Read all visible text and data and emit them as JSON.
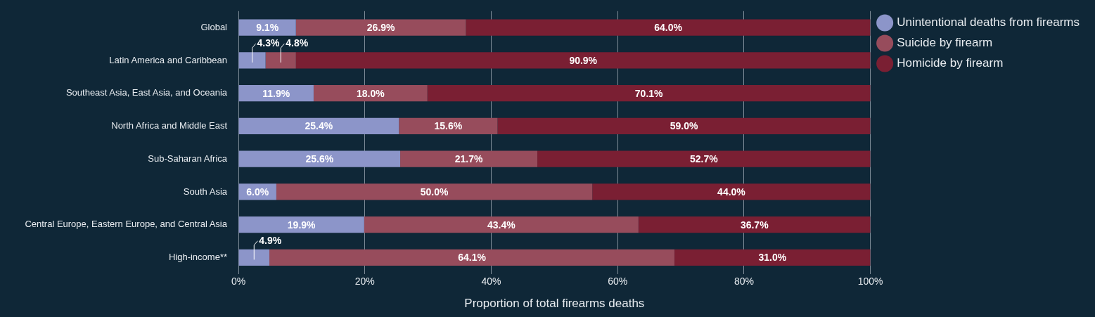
{
  "chart_data": {
    "type": "bar",
    "orientation": "horizontal",
    "stacked": true,
    "categories": [
      "Global",
      "Latin America and Caribbean",
      "Southeast Asia, East Asia, and Oceania",
      "North Africa and Middle East",
      "Sub-Saharan Africa",
      "South Asia",
      "Central Europe, Eastern Europe, and Central Asia",
      "High-income**"
    ],
    "series": [
      {
        "name": "Unintentional deaths from firearms",
        "color": "#8c95c9",
        "values": [
          9.1,
          4.3,
          11.9,
          25.4,
          25.6,
          6.0,
          19.9,
          4.9
        ],
        "value_labels": [
          "9.1%",
          "4.3%",
          "11.9%",
          "25.4%",
          "25.6%",
          "6.0%",
          "19.9%",
          "4.9%"
        ]
      },
      {
        "name": "Suicide by firearm",
        "color": "#974c5c",
        "values": [
          26.9,
          4.8,
          18.0,
          15.6,
          21.7,
          50.0,
          43.4,
          64.1
        ],
        "value_labels": [
          "26.9%",
          "4.8%",
          "18.0%",
          "15.6%",
          "21.7%",
          "50.0%",
          "43.4%",
          "64.1%"
        ]
      },
      {
        "name": "Homicide by firearm",
        "color": "#7a1f33",
        "values": [
          64.0,
          90.9,
          70.1,
          59.0,
          52.7,
          44.0,
          36.7,
          31.0
        ],
        "value_labels": [
          "64.0%",
          "90.9%",
          "70.1%",
          "59.0%",
          "52.7%",
          "44.0%",
          "36.7%",
          "31.0%"
        ]
      }
    ],
    "xlim": [
      0,
      100
    ],
    "xticks": [
      {
        "value": 0,
        "label": "0%"
      },
      {
        "value": 20,
        "label": "20%"
      },
      {
        "value": 40,
        "label": "40%"
      },
      {
        "value": 60,
        "label": "60%"
      },
      {
        "value": 80,
        "label": "80%"
      },
      {
        "value": 100,
        "label": "100%"
      }
    ],
    "xlabel": "Proportion of total firearms deaths",
    "grid": "x",
    "legend": "top right"
  }
}
